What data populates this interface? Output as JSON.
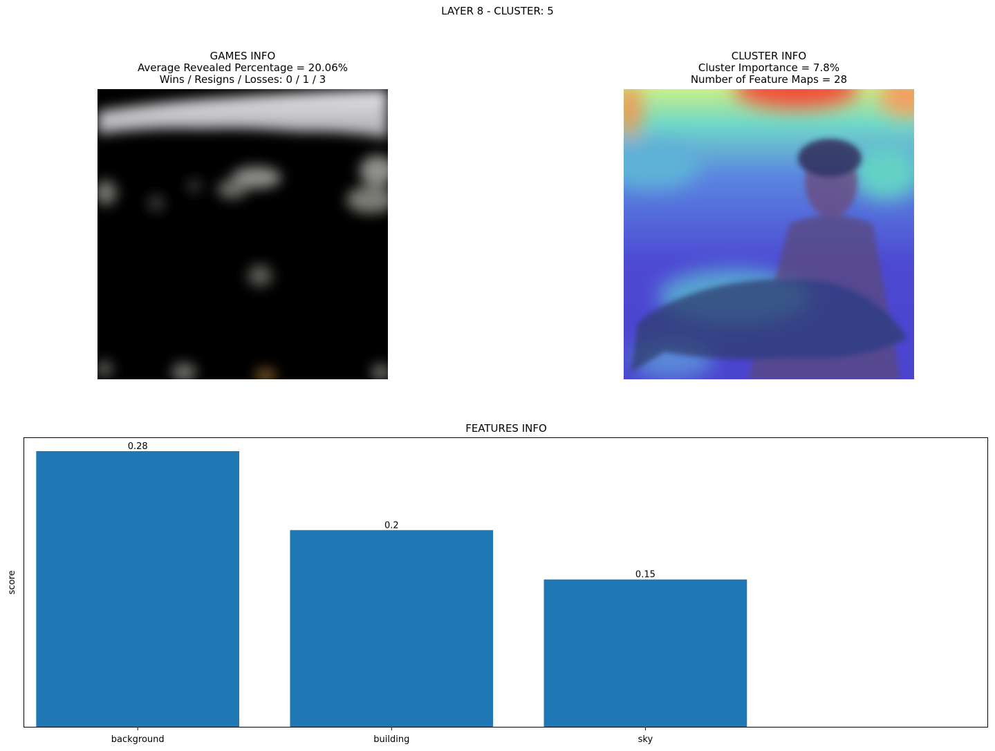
{
  "suptitle": "LAYER 8 - CLUSTER: 5",
  "games_info": {
    "title": "GAMES INFO",
    "line1": "Average Revealed Percentage = 20.06%",
    "line2": "Wins / Resigns / Losses: 0 / 1 / 3"
  },
  "cluster_info": {
    "title": "CLUSTER INFO",
    "line1": "Cluster Importance = 7.8%",
    "line2": "Number of Feature Maps = 28"
  },
  "features_info": {
    "title": "FEATURES INFO"
  },
  "chart_data": {
    "type": "bar",
    "title": "FEATURES INFO",
    "categories": [
      "background",
      "building",
      "sky"
    ],
    "values": [
      0.28,
      0.2,
      0.15
    ],
    "value_labels": [
      "0.28",
      "0.2",
      "0.15"
    ],
    "xlabel": "",
    "ylabel": "score",
    "ylim": [
      0,
      0.294
    ],
    "grid": false,
    "bar_color": "#1f77b4"
  }
}
